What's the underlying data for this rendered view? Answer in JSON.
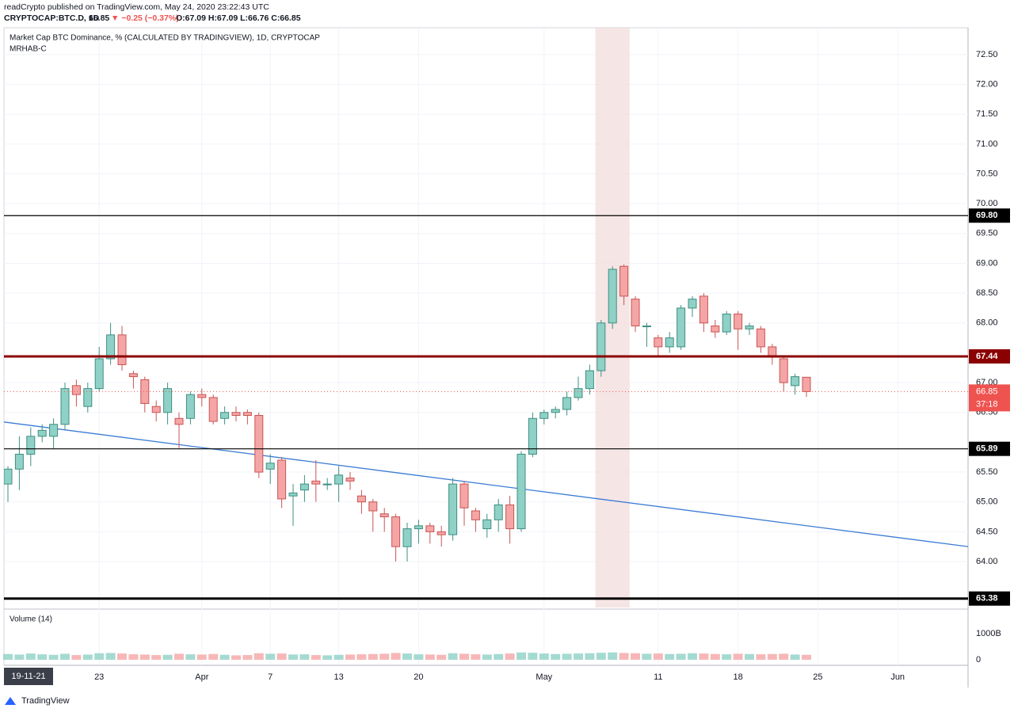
{
  "header": {
    "publisher": "readCrypto published on TradingView.com, May 24, 2020 23:22:43 UTC",
    "symbol": "CRYPTOCAP:BTC.D, 1D",
    "price": "66.85",
    "change": "▼ −0.25 (−0.37%)",
    "ohlc": "O:67.09 H:67.09 L:66.76 C:66.85",
    "footer_brand": "TradingView",
    "range_badge": "19-11-21"
  },
  "chart_data": {
    "type": "candlestick",
    "title": "Market Cap BTC Dominance, % (CALCULATED BY TRADINGVIEW), 1D, CRYPTOCAP",
    "subtitle": "MRHAB-C",
    "x": [
      "2020-03-15",
      "2020-03-16",
      "2020-03-17",
      "2020-03-18",
      "2020-03-19",
      "2020-03-20",
      "2020-03-21",
      "2020-03-22",
      "2020-03-23",
      "2020-03-24",
      "2020-03-25",
      "2020-03-26",
      "2020-03-27",
      "2020-03-28",
      "2020-03-29",
      "2020-03-30",
      "2020-03-31",
      "2020-04-01",
      "2020-04-02",
      "2020-04-03",
      "2020-04-04",
      "2020-04-05",
      "2020-04-06",
      "2020-04-07",
      "2020-04-08",
      "2020-04-09",
      "2020-04-10",
      "2020-04-11",
      "2020-04-12",
      "2020-04-13",
      "2020-04-14",
      "2020-04-15",
      "2020-04-16",
      "2020-04-17",
      "2020-04-18",
      "2020-04-19",
      "2020-04-20",
      "2020-04-21",
      "2020-04-22",
      "2020-04-23",
      "2020-04-24",
      "2020-04-25",
      "2020-04-26",
      "2020-04-27",
      "2020-04-28",
      "2020-04-29",
      "2020-04-30",
      "2020-05-01",
      "2020-05-02",
      "2020-05-03",
      "2020-05-04",
      "2020-05-05",
      "2020-05-06",
      "2020-05-07",
      "2020-05-08",
      "2020-05-09",
      "2020-05-10",
      "2020-05-11",
      "2020-05-12",
      "2020-05-13",
      "2020-05-14",
      "2020-05-15",
      "2020-05-16",
      "2020-05-17",
      "2020-05-18",
      "2020-05-19",
      "2020-05-20",
      "2020-05-21",
      "2020-05-22",
      "2020-05-23",
      "2020-05-24"
    ],
    "open": [
      65.3,
      65.55,
      65.8,
      66.1,
      66.1,
      66.3,
      66.95,
      66.6,
      66.9,
      67.4,
      67.8,
      67.15,
      67.05,
      66.6,
      66.5,
      66.4,
      66.4,
      66.8,
      66.75,
      66.4,
      66.5,
      66.5,
      66.45,
      65.55,
      65.7,
      65.1,
      65.2,
      65.35,
      65.3,
      65.3,
      65.4,
      65.1,
      65.0,
      64.8,
      64.75,
      64.25,
      64.55,
      64.6,
      64.5,
      64.45,
      65.3,
      64.85,
      64.55,
      64.7,
      64.95,
      64.55,
      65.8,
      66.4,
      66.5,
      66.55,
      66.75,
      66.9,
      67.2,
      68.0,
      68.95,
      68.4,
      67.95,
      67.75,
      67.6,
      67.6,
      68.25,
      68.45,
      67.95,
      67.85,
      68.15,
      67.9,
      67.9,
      67.6,
      67.4,
      66.95,
      67.09
    ],
    "high": [
      65.6,
      66.1,
      66.25,
      66.3,
      66.4,
      67.0,
      67.05,
      67.0,
      67.6,
      68.0,
      67.95,
      67.2,
      67.1,
      66.7,
      67.0,
      66.5,
      66.85,
      66.9,
      66.8,
      66.6,
      66.6,
      66.55,
      66.5,
      65.8,
      65.75,
      65.3,
      65.45,
      65.7,
      65.4,
      65.6,
      65.5,
      65.2,
      65.05,
      64.9,
      64.8,
      64.65,
      64.7,
      64.65,
      64.6,
      65.4,
      65.35,
      64.9,
      64.8,
      65.05,
      65.1,
      65.85,
      66.5,
      66.55,
      66.6,
      66.85,
      67.1,
      67.3,
      68.05,
      68.95,
      68.98,
      68.45,
      68.0,
      67.8,
      67.85,
      68.3,
      68.45,
      68.5,
      68.05,
      68.2,
      68.2,
      68.0,
      67.95,
      67.65,
      67.45,
      67.15,
      67.09
    ],
    "low": [
      65.0,
      65.2,
      65.6,
      66.0,
      65.9,
      66.2,
      66.6,
      66.5,
      66.85,
      67.3,
      67.2,
      66.9,
      66.5,
      66.35,
      66.3,
      65.9,
      66.3,
      66.6,
      66.3,
      66.3,
      66.35,
      66.3,
      65.4,
      65.3,
      64.9,
      64.6,
      65.0,
      65.0,
      65.2,
      65.0,
      65.2,
      64.8,
      64.5,
      64.5,
      64.0,
      64.0,
      64.3,
      64.3,
      64.25,
      64.35,
      64.6,
      64.5,
      64.4,
      64.5,
      64.3,
      64.5,
      65.75,
      66.3,
      66.4,
      66.45,
      66.7,
      66.8,
      67.1,
      67.9,
      68.3,
      67.85,
      67.6,
      67.45,
      67.5,
      67.55,
      68.1,
      67.85,
      67.75,
      67.8,
      67.55,
      67.8,
      67.5,
      67.3,
      66.85,
      66.8,
      66.76
    ],
    "close": [
      65.55,
      65.8,
      66.1,
      66.2,
      66.3,
      66.9,
      66.8,
      66.9,
      67.4,
      67.8,
      67.3,
      67.1,
      66.65,
      66.5,
      66.9,
      66.3,
      66.8,
      66.75,
      66.35,
      66.5,
      66.45,
      66.45,
      65.5,
      65.65,
      65.05,
      65.15,
      65.3,
      65.3,
      65.3,
      65.45,
      65.35,
      65.0,
      64.85,
      64.75,
      64.25,
      64.55,
      64.6,
      64.5,
      64.45,
      65.3,
      64.9,
      64.7,
      64.7,
      64.95,
      64.55,
      65.8,
      66.4,
      66.5,
      66.55,
      66.75,
      66.9,
      67.2,
      68.0,
      68.9,
      68.45,
      67.95,
      67.95,
      67.6,
      67.75,
      68.25,
      68.4,
      68.0,
      67.85,
      68.15,
      67.9,
      67.95,
      67.6,
      67.45,
      67.0,
      67.1,
      66.85
    ],
    "volume": [
      220,
      200,
      240,
      210,
      190,
      230,
      180,
      200,
      250,
      260,
      240,
      210,
      200,
      180,
      190,
      230,
      210,
      200,
      220,
      190,
      170,
      180,
      250,
      230,
      240,
      200,
      210,
      180,
      170,
      190,
      200,
      210,
      220,
      230,
      260,
      240,
      210,
      200,
      190,
      250,
      230,
      210,
      200,
      220,
      240,
      280,
      270,
      240,
      220,
      230,
      240,
      250,
      270,
      280,
      260,
      250,
      230,
      240,
      220,
      230,
      250,
      240,
      220,
      210,
      230,
      220,
      210,
      220,
      230,
      200,
      190
    ],
    "up_color": "#8fd1c6",
    "up_border": "#3f8f82",
    "down_color": "#f5a5a5",
    "down_border": "#c95454",
    "ylim": [
      63.23,
      72.95
    ],
    "yticks": [
      {
        "value": 64,
        "label": "64.00"
      },
      {
        "value": 64.5,
        "label": "64.50"
      },
      {
        "value": 65,
        "label": "65.00"
      },
      {
        "value": 65.5,
        "label": "65.50"
      },
      {
        "value": 66.5,
        "label": "66.50"
      },
      {
        "value": 67,
        "label": "67.00"
      },
      {
        "value": 68,
        "label": "68.00"
      },
      {
        "value": 68.5,
        "label": "68.50"
      },
      {
        "value": 69,
        "label": "69.00"
      },
      {
        "value": 69.5,
        "label": "69.50"
      },
      {
        "value": 70,
        "label": "70.00"
      },
      {
        "value": 70.5,
        "label": "70.50"
      },
      {
        "value": 71,
        "label": "71.00"
      },
      {
        "value": 71.5,
        "label": "71.50"
      },
      {
        "value": 72,
        "label": "72.00"
      },
      {
        "value": 72.5,
        "label": "72.50"
      }
    ],
    "xticks": [
      {
        "value": "2020-03-23",
        "label": "23"
      },
      {
        "value": "2020-04-01",
        "label": "Apr"
      },
      {
        "value": "2020-04-07",
        "label": "7"
      },
      {
        "value": "2020-04-13",
        "label": "13"
      },
      {
        "value": "2020-04-20",
        "label": "20"
      },
      {
        "value": "2020-05-01",
        "label": "May"
      },
      {
        "value": "2020-05-11",
        "label": "11"
      },
      {
        "value": "2020-05-18",
        "label": "18"
      },
      {
        "value": "2020-05-25",
        "label": "25"
      },
      {
        "value": "2020-06-01",
        "label": "Jun"
      }
    ],
    "grid": true,
    "levels": [
      {
        "value": 69.8,
        "label": "69.80",
        "color": "#000000"
      },
      {
        "value": 67.44,
        "label": "67.44",
        "color": "#8b0000"
      },
      {
        "value": 65.89,
        "label": "65.89",
        "color": "#000000"
      },
      {
        "value": 63.38,
        "label": "63.38",
        "color": "#000000"
      }
    ],
    "last_price": 66.85,
    "countdown": "37:18",
    "last_color": "#ef5350",
    "trendline": {
      "x": [
        "2020-03-15",
        "2020-06-08"
      ],
      "values": [
        66.34,
        64.23
      ],
      "color": "#3a7bd5"
    },
    "highlight": [
      "2020-05-06",
      "2020-05-08"
    ],
    "volume_label": "Volume (14)",
    "volume_ylim": [
      0,
      1850
    ],
    "volume_yticks": [
      0,
      {
        "value": 1000,
        "label": "1000B"
      }
    ]
  }
}
